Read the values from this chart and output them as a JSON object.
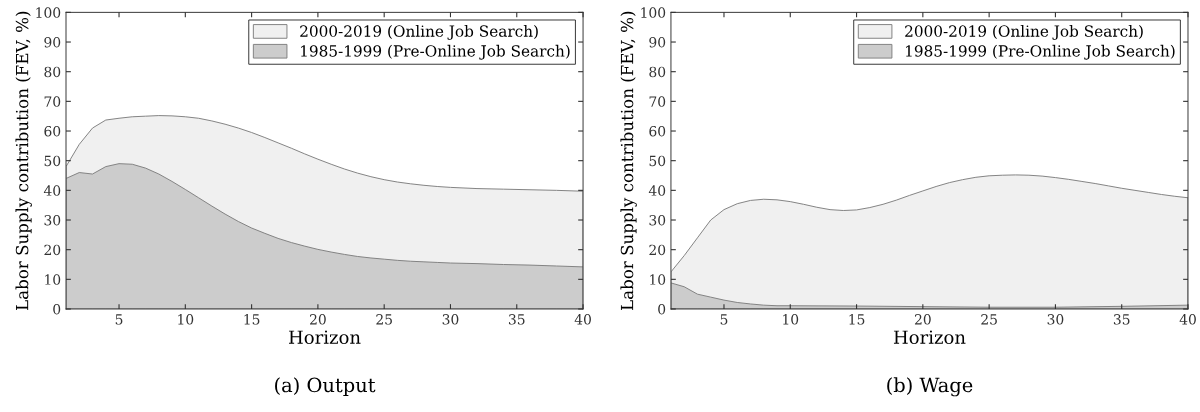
{
  "chart_data": [
    {
      "type": "area",
      "title": "(a) Output",
      "xlabel": "Horizon",
      "ylabel": "Labor Supply contribution (FEV, %)",
      "xlim": [
        1,
        40
      ],
      "xticks": [
        5,
        10,
        15,
        20,
        25,
        30,
        35,
        40
      ],
      "ylim": [
        0,
        100
      ],
      "yticks": [
        0,
        10,
        20,
        30,
        40,
        50,
        60,
        70,
        80,
        90,
        100
      ],
      "grid": false,
      "legend": "top right",
      "series": [
        {
          "name": "2000-2019 (Online Job Search)",
          "color": "#f0f0f0",
          "x": [
            1,
            2,
            3,
            4,
            5,
            6,
            7,
            8,
            9,
            10,
            11,
            12,
            13,
            14,
            15,
            16,
            17,
            18,
            19,
            20,
            21,
            22,
            23,
            24,
            25,
            26,
            27,
            28,
            29,
            30,
            32,
            34,
            36,
            38,
            40
          ],
          "values": [
            48,
            55.5,
            61,
            63.7,
            64.3,
            64.8,
            65,
            65.2,
            65.1,
            64.8,
            64.3,
            63.4,
            62.3,
            61,
            59.5,
            57.8,
            56,
            54.2,
            52.3,
            50.5,
            48.8,
            47.2,
            45.8,
            44.6,
            43.6,
            42.8,
            42.2,
            41.7,
            41.3,
            41,
            40.6,
            40.4,
            40.2,
            40,
            39.7
          ]
        },
        {
          "name": "1985-1999 (Pre-Online Job Search)",
          "color": "#cccccc",
          "x": [
            1,
            2,
            3,
            4,
            5,
            6,
            7,
            8,
            9,
            10,
            11,
            12,
            13,
            14,
            15,
            16,
            17,
            18,
            19,
            20,
            21,
            22,
            23,
            24,
            25,
            26,
            27,
            28,
            29,
            30,
            32,
            34,
            36,
            38,
            40
          ],
          "values": [
            44,
            46,
            45.5,
            48,
            49,
            48.8,
            47.5,
            45.5,
            43,
            40.3,
            37.5,
            34.7,
            32,
            29.5,
            27.3,
            25.5,
            23.8,
            22.4,
            21.2,
            20.1,
            19.2,
            18.4,
            17.7,
            17.2,
            16.8,
            16.4,
            16.1,
            15.9,
            15.7,
            15.5,
            15.3,
            15,
            14.8,
            14.5,
            14.2
          ]
        }
      ]
    },
    {
      "type": "area",
      "title": "(b) Wage",
      "xlabel": "Horizon",
      "ylabel": "Labor Supply contribution (FEV, %)",
      "xlim": [
        1,
        40
      ],
      "xticks": [
        5,
        10,
        15,
        20,
        25,
        30,
        35,
        40
      ],
      "ylim": [
        0,
        100
      ],
      "yticks": [
        0,
        10,
        20,
        30,
        40,
        50,
        60,
        70,
        80,
        90,
        100
      ],
      "grid": false,
      "legend": "top right",
      "series": [
        {
          "name": "2000-2019 (Online Job Search)",
          "color": "#f0f0f0",
          "x": [
            1,
            2,
            3,
            4,
            5,
            6,
            7,
            8,
            9,
            10,
            11,
            12,
            13,
            14,
            15,
            16,
            17,
            18,
            19,
            20,
            21,
            22,
            23,
            24,
            25,
            26,
            27,
            28,
            29,
            30,
            31,
            32,
            33,
            34,
            35,
            36,
            37,
            38,
            39,
            40
          ],
          "values": [
            12.5,
            18,
            24,
            30,
            33.5,
            35.5,
            36.6,
            37,
            36.8,
            36.2,
            35.3,
            34.3,
            33.5,
            33.2,
            33.4,
            34.2,
            35.3,
            36.7,
            38.3,
            39.8,
            41.3,
            42.6,
            43.6,
            44.4,
            44.9,
            45.1,
            45.2,
            45.1,
            44.8,
            44.3,
            43.7,
            43,
            42.3,
            41.5,
            40.7,
            40,
            39.3,
            38.6,
            38,
            37.5
          ]
        },
        {
          "name": "1985-1999 (Pre-Online Job Search)",
          "color": "#cccccc",
          "x": [
            1,
            2,
            3,
            4,
            5,
            6,
            7,
            8,
            9,
            10,
            15,
            20,
            25,
            30,
            35,
            40
          ],
          "values": [
            8.8,
            7.5,
            5,
            4,
            3,
            2.2,
            1.7,
            1.3,
            1.1,
            1.1,
            1,
            0.8,
            0.6,
            0.6,
            0.9,
            1.3
          ]
        }
      ]
    }
  ]
}
